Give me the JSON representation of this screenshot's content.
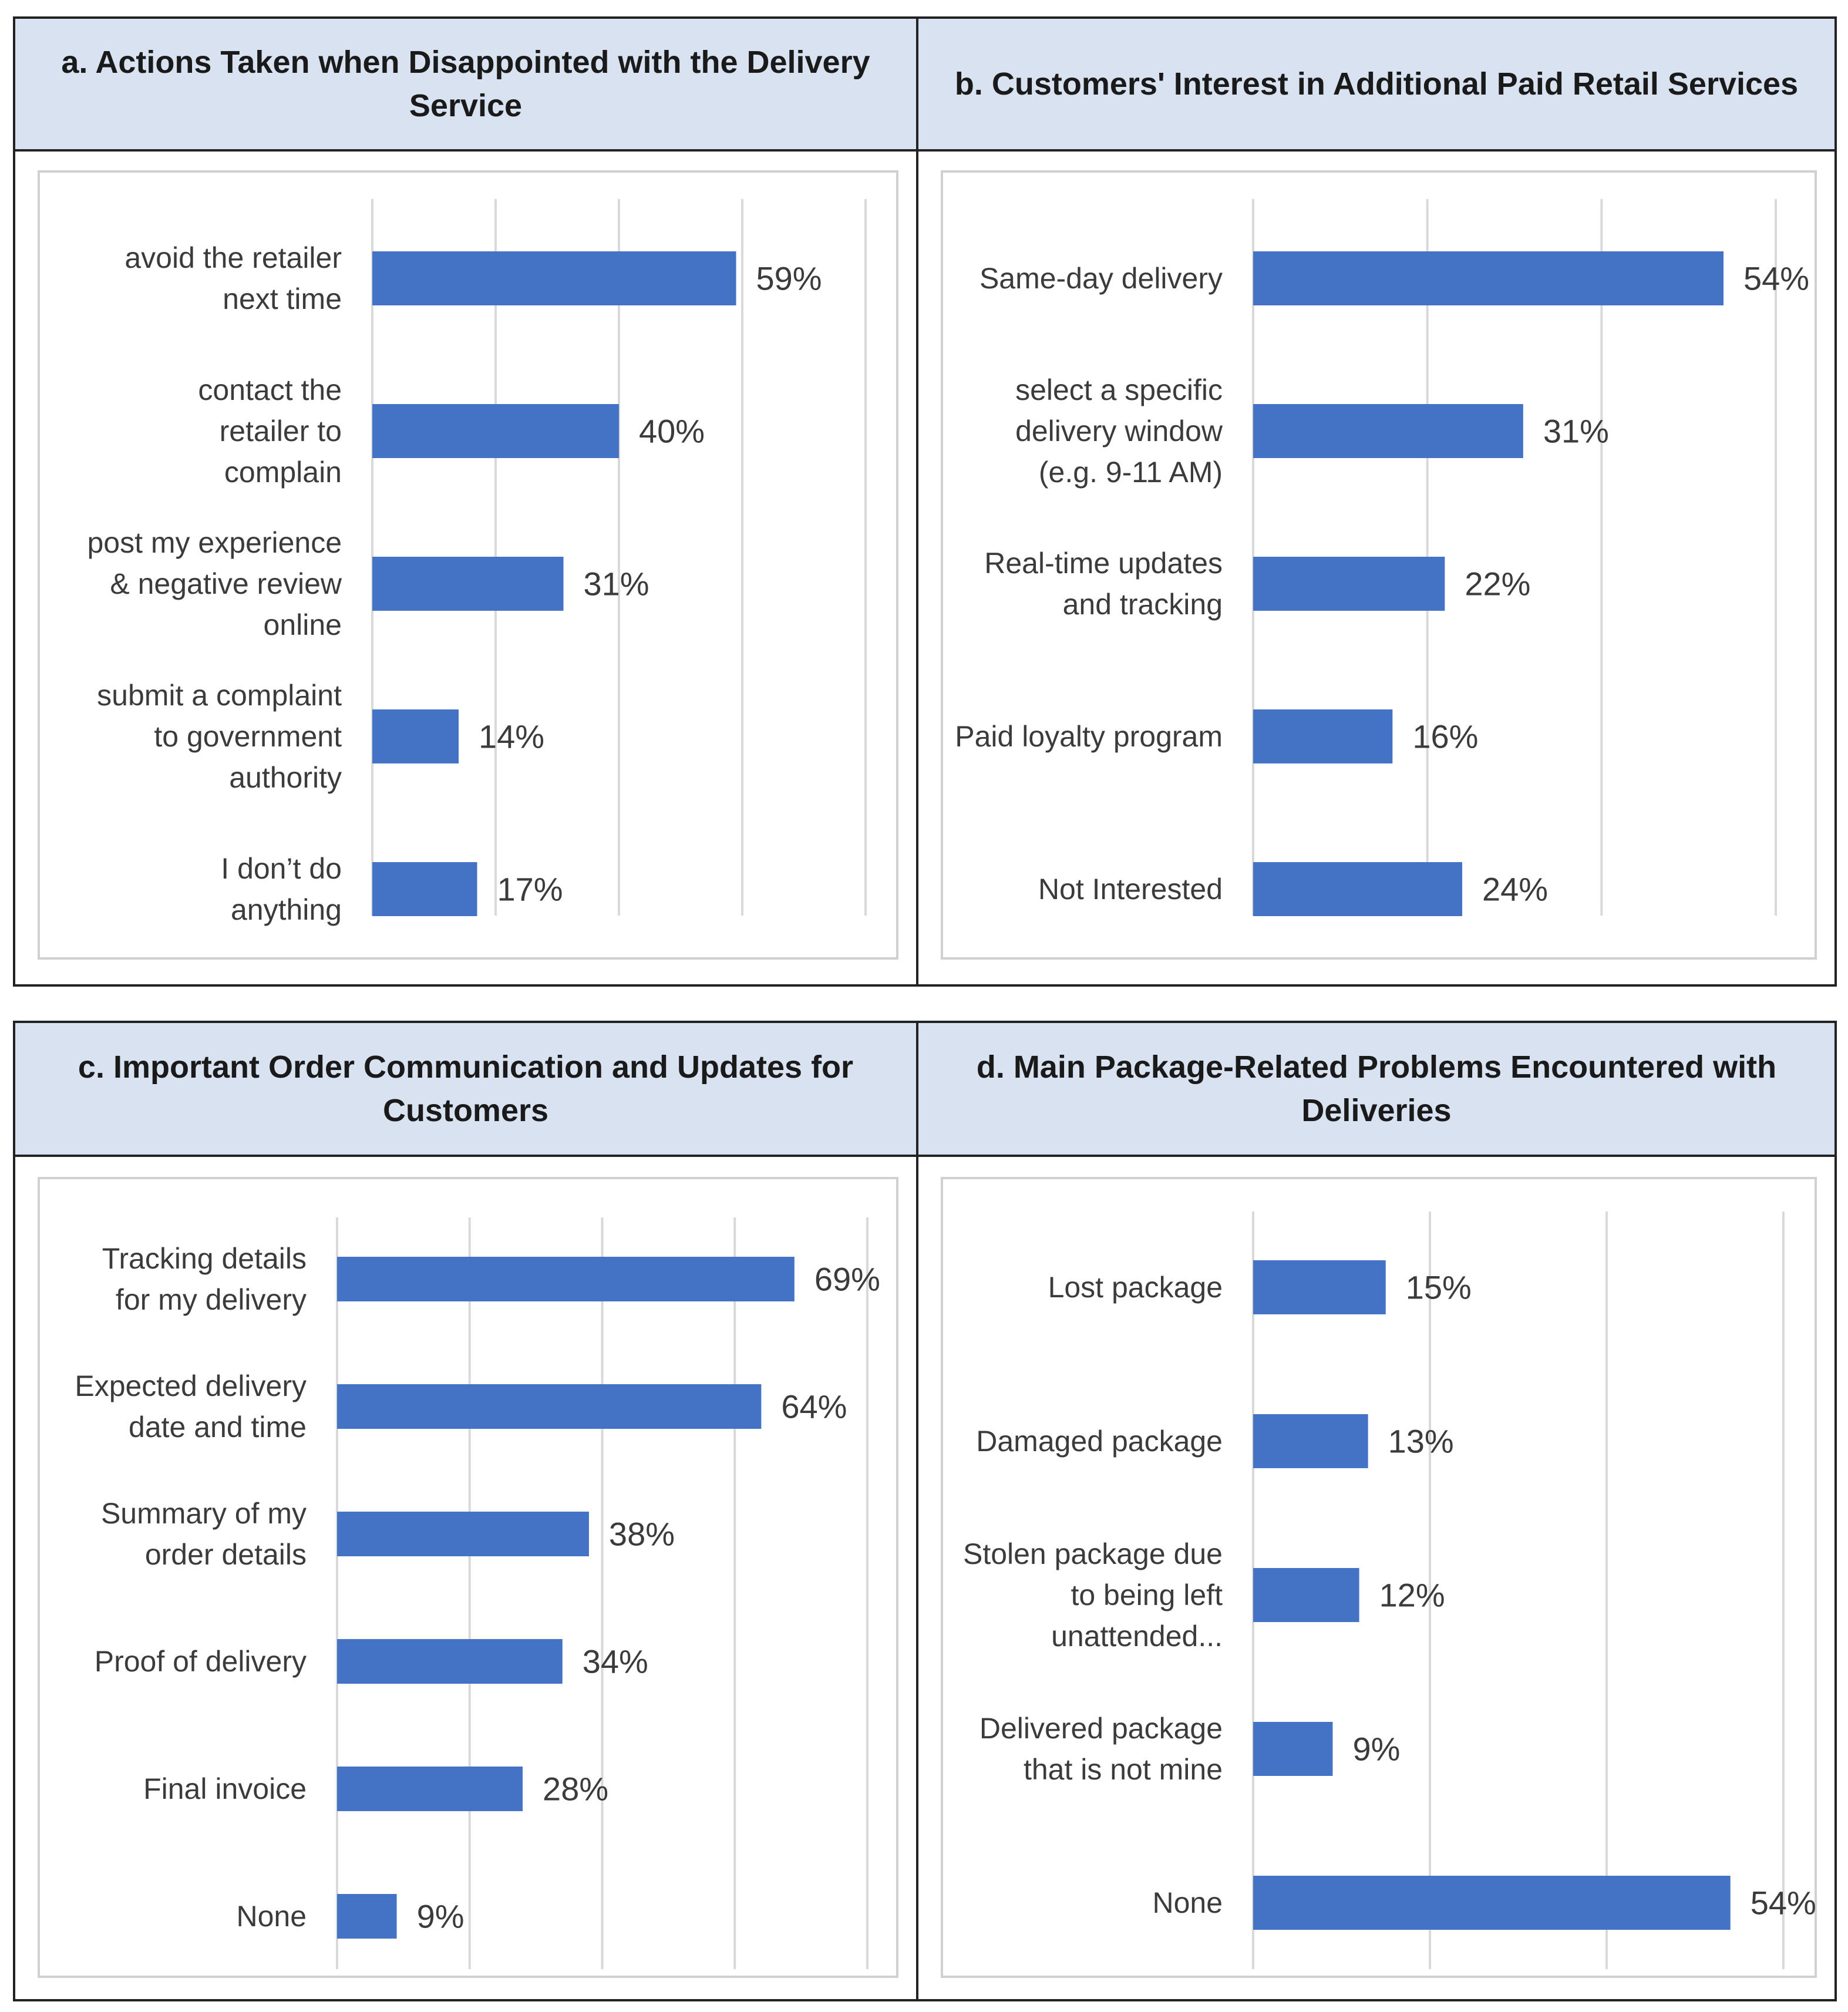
{
  "colors": {
    "bar": "#4472c4",
    "grid": "#d9d9d9",
    "header_bg": "#d9e2f1"
  },
  "chart_data": [
    {
      "id": "a",
      "type": "bar",
      "orientation": "horizontal",
      "title": "a. Actions Taken when Disappointed with the Delivery Service",
      "categories": [
        "avoid the retailer next time",
        "contact the retailer to complain",
        "post my experience & negative review online",
        "submit a complaint to government authority",
        "I don’t do anything"
      ],
      "values": [
        59,
        40,
        31,
        14,
        17
      ],
      "value_labels": [
        "59%",
        "40%",
        "31%",
        "14%",
        "17%"
      ],
      "xlim": [
        0,
        80
      ],
      "grid": true,
      "gridline_step": 20
    },
    {
      "id": "b",
      "type": "bar",
      "orientation": "horizontal",
      "title": "b. Customers' Interest in Additional Paid Retail Services",
      "categories": [
        "Same-day delivery",
        "select a specific delivery window (e.g. 9-11 AM)",
        "Real-time updates and tracking",
        "Paid loyalty program",
        "Not Interested"
      ],
      "values": [
        54,
        31,
        22,
        16,
        24
      ],
      "value_labels": [
        "54%",
        "31%",
        "22%",
        "16%",
        "24%"
      ],
      "xlim": [
        0,
        60
      ],
      "grid": true,
      "gridline_step": 20
    },
    {
      "id": "c",
      "type": "bar",
      "orientation": "horizontal",
      "title": "c. Important Order Communication and Updates for Customers",
      "categories": [
        "Tracking details for my delivery",
        "Expected delivery date and time",
        "Summary of my order details",
        "Proof of delivery",
        "Final invoice",
        "None"
      ],
      "values": [
        69,
        64,
        38,
        34,
        28,
        9
      ],
      "value_labels": [
        "69%",
        "64%",
        "38%",
        "34%",
        "28%",
        "9%"
      ],
      "xlim": [
        0,
        80
      ],
      "grid": true,
      "gridline_step": 20
    },
    {
      "id": "d",
      "type": "bar",
      "orientation": "horizontal",
      "title": "d. Main Package-Related Problems Encountered with Deliveries",
      "categories": [
        "Lost package",
        "Damaged package",
        "Stolen package due to being left unattended...",
        "Delivered package that is not mine",
        "None"
      ],
      "values": [
        15,
        13,
        12,
        9,
        54
      ],
      "value_labels": [
        "15%",
        "13%",
        "12%",
        "9%",
        "54%"
      ],
      "xlim": [
        0,
        60
      ],
      "grid": true,
      "gridline_step": 20
    }
  ]
}
